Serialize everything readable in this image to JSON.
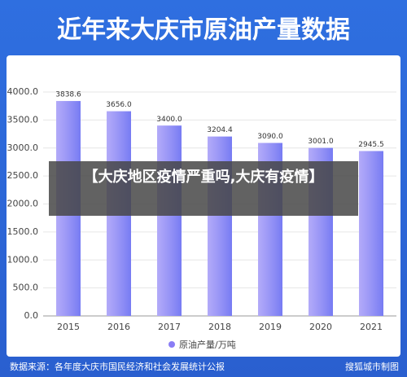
{
  "chart_data": {
    "type": "bar",
    "title": "近年来大庆市原油产量数据",
    "categories": [
      "2015",
      "2016",
      "2017",
      "2018",
      "2019",
      "2020",
      "2021"
    ],
    "series": [
      {
        "name": "原油产量/万吨",
        "color": "#8a7df5",
        "values": [
          3838.6,
          3656.0,
          3400.0,
          3204.4,
          3090.0,
          3001.0,
          2945.5
        ],
        "value_labels": [
          "3838.6",
          "3656.0",
          "3400.0",
          "3204.4",
          "3090.0",
          "3001.0",
          "2945.5"
        ]
      }
    ],
    "ylim": [
      0,
      4000
    ],
    "yticks": [
      {
        "value": 0,
        "label": "0.0"
      },
      {
        "value": 500,
        "label": "500.0"
      },
      {
        "value": 1000,
        "label": "1000.0"
      },
      {
        "value": 1500,
        "label": "1500.0"
      },
      {
        "value": 2000,
        "label": "2000.0"
      },
      {
        "value": 2500,
        "label": "2500.0"
      },
      {
        "value": 3000,
        "label": "3000.0"
      },
      {
        "value": 3500,
        "label": "3500.0"
      },
      {
        "value": 4000,
        "label": "4000.0"
      }
    ],
    "grid": true
  },
  "banner": "【大庆地区疫情严重吗,大庆有疫情】",
  "source": "数据来源：各年度大庆市国民经济和社会发展统计公报",
  "credit": "搜狐城市制图"
}
